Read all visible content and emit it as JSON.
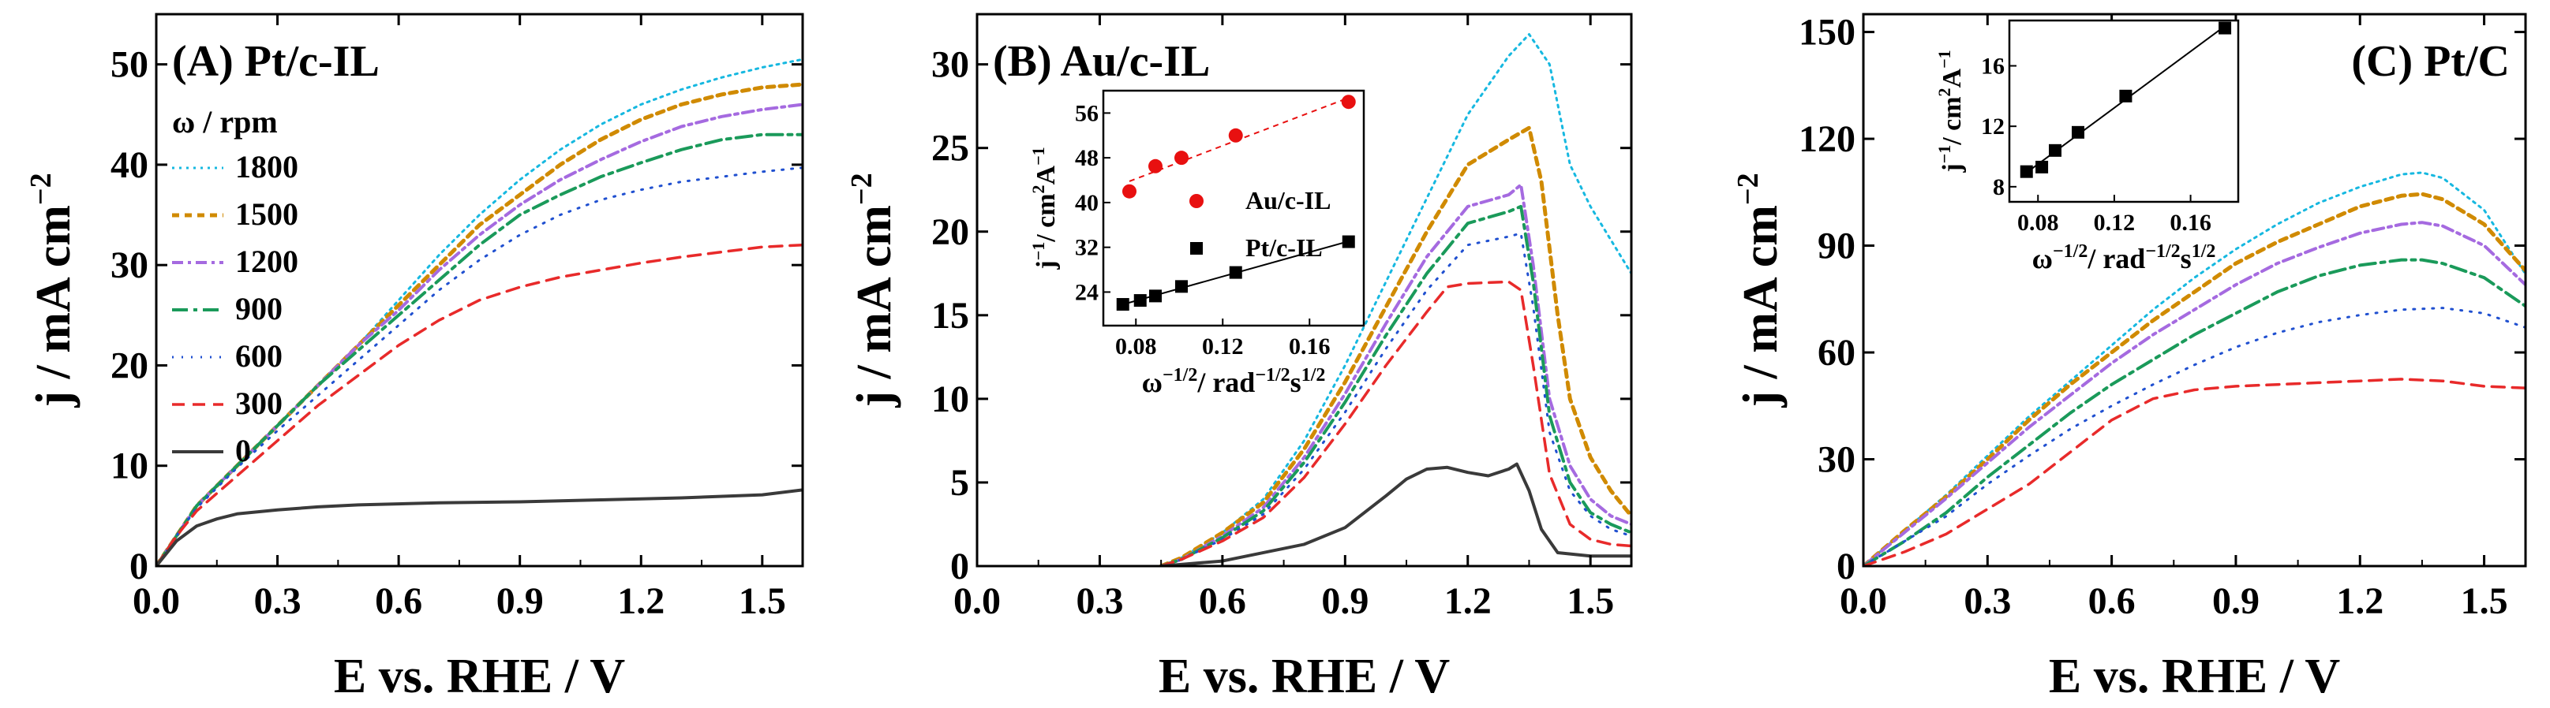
{
  "figure": {
    "x_axis_label": "E vs. RHE / V",
    "y_axis_label": "j / mA cm",
    "y_axis_label_exp": "−2",
    "inset_x_label_main": "ω",
    "inset_x_label_exp1": "−1/2",
    "inset_x_label_mid": "/ rad",
    "inset_x_label_exp2": "−1/2",
    "inset_x_label_s": "s",
    "inset_x_label_exp3": "1/2",
    "inset_y_label_main": "j",
    "inset_y_label_exp1": "−1",
    "inset_y_label_mid": "/ cm",
    "inset_y_label_exp2": "2",
    "inset_y_label_a": "A",
    "inset_y_label_exp3": "−1"
  },
  "colors": {
    "1800": "#16b8e0",
    "1500": "#d08a00",
    "1200": "#a56ae0",
    "900": "#1a9a5a",
    "600": "#2050d0",
    "300": "#e82a2a",
    "0": "#3a3a3a",
    "au_points": "#e81010",
    "pt_points": "#000000"
  },
  "chart_data": [
    {
      "id": "A",
      "type": "line",
      "title": "(A) Pt/c-IL",
      "xlabel": "E vs. RHE / V",
      "ylabel": "j / mA cm−2",
      "xlim": [
        0.0,
        1.6
      ],
      "ylim": [
        0,
        55
      ],
      "xticks": [
        "0.0",
        "0.3",
        "0.6",
        "0.9",
        "1.2",
        "1.5"
      ],
      "xtick_values": [
        0.0,
        0.3,
        0.6,
        0.9,
        1.2,
        1.5
      ],
      "yticks": [
        "0",
        "10",
        "20",
        "30",
        "40",
        "50"
      ],
      "ytick_values": [
        0,
        10,
        20,
        30,
        40,
        50
      ],
      "legend_title": "ω / rpm",
      "legend_position": "left",
      "series": [
        {
          "name": "1800",
          "x": [
            0,
            0.05,
            0.1,
            0.2,
            0.3,
            0.4,
            0.5,
            0.6,
            0.7,
            0.8,
            0.9,
            1.0,
            1.1,
            1.2,
            1.3,
            1.4,
            1.5,
            1.6
          ],
          "y": [
            0,
            3,
            6,
            10,
            14,
            18,
            22,
            26.5,
            31,
            35,
            38.5,
            41.5,
            44,
            46,
            47.5,
            48.7,
            49.7,
            50.5
          ]
        },
        {
          "name": "1500",
          "x": [
            0,
            0.05,
            0.1,
            0.2,
            0.3,
            0.4,
            0.5,
            0.6,
            0.7,
            0.8,
            0.9,
            1.0,
            1.1,
            1.2,
            1.3,
            1.4,
            1.5,
            1.6
          ],
          "y": [
            0,
            3,
            6,
            10,
            14,
            18,
            22,
            26,
            30,
            34,
            37,
            40,
            42.5,
            44.5,
            46,
            47,
            47.7,
            48
          ]
        },
        {
          "name": "1200",
          "x": [
            0,
            0.05,
            0.1,
            0.2,
            0.3,
            0.4,
            0.5,
            0.6,
            0.7,
            0.8,
            0.9,
            1.0,
            1.1,
            1.2,
            1.3,
            1.4,
            1.5,
            1.6
          ],
          "y": [
            0,
            3,
            6,
            10,
            14,
            18,
            22,
            25.5,
            29.5,
            33,
            36,
            38.5,
            40.5,
            42.3,
            43.8,
            44.8,
            45.5,
            46
          ]
        },
        {
          "name": "900",
          "x": [
            0,
            0.05,
            0.1,
            0.2,
            0.3,
            0.4,
            0.5,
            0.6,
            0.7,
            0.8,
            0.9,
            1.0,
            1.1,
            1.2,
            1.3,
            1.4,
            1.5,
            1.6
          ],
          "y": [
            0,
            3,
            6,
            10,
            14,
            18,
            21.5,
            25,
            28.5,
            32,
            35,
            37,
            38.8,
            40.2,
            41.5,
            42.5,
            43,
            43
          ]
        },
        {
          "name": "600",
          "x": [
            0,
            0.05,
            0.1,
            0.2,
            0.3,
            0.4,
            0.5,
            0.6,
            0.7,
            0.8,
            0.9,
            1.0,
            1.1,
            1.2,
            1.3,
            1.4,
            1.5,
            1.6
          ],
          "y": [
            0,
            3,
            5.8,
            9.8,
            13.5,
            17,
            20.5,
            24,
            27.5,
            30.5,
            33,
            35,
            36.5,
            37.5,
            38.3,
            38.8,
            39.3,
            39.7
          ]
        },
        {
          "name": "300",
          "x": [
            0,
            0.05,
            0.1,
            0.2,
            0.3,
            0.4,
            0.5,
            0.6,
            0.7,
            0.8,
            0.9,
            1.0,
            1.1,
            1.2,
            1.3,
            1.4,
            1.5,
            1.6
          ],
          "y": [
            0,
            3,
            5.5,
            9,
            12.5,
            16,
            19,
            22,
            24.5,
            26.5,
            27.8,
            28.8,
            29.5,
            30.2,
            30.8,
            31.3,
            31.8,
            32
          ]
        },
        {
          "name": "0",
          "x": [
            0,
            0.05,
            0.1,
            0.15,
            0.2,
            0.3,
            0.4,
            0.5,
            0.7,
            0.9,
            1.1,
            1.3,
            1.5,
            1.6
          ],
          "y": [
            0,
            2.5,
            4,
            4.7,
            5.2,
            5.6,
            5.9,
            6.1,
            6.3,
            6.4,
            6.6,
            6.8,
            7.1,
            7.6
          ]
        }
      ]
    },
    {
      "id": "B",
      "type": "line",
      "title": "(B) Au/c-IL",
      "xlabel": "E vs. RHE / V",
      "ylabel": "j / mA cm−2",
      "xlim": [
        0.0,
        1.6
      ],
      "ylim": [
        0,
        33
      ],
      "xticks": [
        "0.0",
        "0.3",
        "0.6",
        "0.9",
        "1.2",
        "1.5"
      ],
      "xtick_values": [
        0.0,
        0.3,
        0.6,
        0.9,
        1.2,
        1.5
      ],
      "yticks": [
        "0",
        "5",
        "10",
        "15",
        "20",
        "25",
        "30"
      ],
      "ytick_values": [
        0,
        5,
        10,
        15,
        20,
        25,
        30
      ],
      "series": [
        {
          "name": "1800",
          "x": [
            0.45,
            0.5,
            0.6,
            0.7,
            0.8,
            0.9,
            1.0,
            1.1,
            1.2,
            1.3,
            1.35,
            1.4,
            1.45,
            1.5,
            1.55,
            1.6
          ],
          "y": [
            0,
            0.5,
            2,
            4,
            7.5,
            12,
            17,
            22,
            27,
            30.5,
            31.8,
            30,
            24,
            21.5,
            19.5,
            17.5
          ]
        },
        {
          "name": "1500",
          "x": [
            0.45,
            0.5,
            0.6,
            0.7,
            0.8,
            0.9,
            1.0,
            1.1,
            1.2,
            1.3,
            1.35,
            1.38,
            1.42,
            1.45,
            1.5,
            1.55,
            1.6
          ],
          "y": [
            0,
            0.5,
            2,
            3.8,
            7,
            11,
            15.5,
            20,
            24,
            25.5,
            26.2,
            23,
            15,
            10,
            6.5,
            4.5,
            3
          ]
        },
        {
          "name": "1200",
          "x": [
            0.45,
            0.5,
            0.6,
            0.7,
            0.8,
            0.9,
            1.0,
            1.1,
            1.2,
            1.3,
            1.33,
            1.36,
            1.4,
            1.45,
            1.5,
            1.55,
            1.6
          ],
          "y": [
            0,
            0.4,
            1.8,
            3.5,
            6.5,
            10.3,
            14.5,
            18.5,
            21.5,
            22.2,
            22.8,
            18,
            10,
            6,
            4,
            3,
            2.5
          ]
        },
        {
          "name": "900",
          "x": [
            0.45,
            0.5,
            0.6,
            0.7,
            0.8,
            0.9,
            1.0,
            1.1,
            1.2,
            1.3,
            1.33,
            1.36,
            1.4,
            1.45,
            1.5,
            1.55,
            1.6
          ],
          "y": [
            0,
            0.4,
            1.7,
            3.3,
            6.2,
            9.8,
            13.8,
            17.5,
            20.5,
            21.2,
            21.5,
            17,
            9,
            5,
            3.2,
            2.5,
            2
          ]
        },
        {
          "name": "600",
          "x": [
            0.45,
            0.5,
            0.6,
            0.7,
            0.8,
            0.9,
            1.0,
            1.1,
            1.2,
            1.3,
            1.33,
            1.36,
            1.4,
            1.45,
            1.5,
            1.55,
            1.6
          ],
          "y": [
            0,
            0.4,
            1.6,
            3.1,
            5.8,
            9.2,
            13,
            16.5,
            19.2,
            19.7,
            19.9,
            15.5,
            8,
            4.5,
            3,
            2.2,
            1.8
          ]
        },
        {
          "name": "300",
          "x": [
            0.45,
            0.5,
            0.6,
            0.7,
            0.8,
            0.9,
            1.0,
            1.1,
            1.15,
            1.2,
            1.3,
            1.33,
            1.36,
            1.4,
            1.45,
            1.5,
            1.55,
            1.6
          ],
          "y": [
            0,
            0.4,
            1.5,
            2.9,
            5.3,
            8.5,
            12,
            15.2,
            16.7,
            16.9,
            17,
            16.5,
            12,
            5.5,
            2.5,
            1.6,
            1.3,
            1.2
          ]
        },
        {
          "name": "0",
          "x": [
            0.45,
            0.6,
            0.8,
            0.9,
            1.0,
            1.05,
            1.1,
            1.15,
            1.2,
            1.25,
            1.3,
            1.32,
            1.35,
            1.38,
            1.42,
            1.5,
            1.6
          ],
          "y": [
            0,
            0.3,
            1.3,
            2.3,
            4.2,
            5.2,
            5.8,
            5.9,
            5.6,
            5.4,
            5.8,
            6.1,
            4.5,
            2.2,
            0.8,
            0.6,
            0.6
          ]
        }
      ],
      "inset": {
        "type": "scatter",
        "xlim": [
          0.065,
          0.185
        ],
        "ylim": [
          18,
          60
        ],
        "xticks": [
          "0.08",
          "0.12",
          "0.16"
        ],
        "xtick_values": [
          0.08,
          0.12,
          0.16
        ],
        "yticks": [
          "24",
          "32",
          "40",
          "48",
          "56"
        ],
        "ytick_values": [
          24,
          32,
          40,
          48,
          56
        ],
        "legend_position": "right",
        "series": [
          {
            "name": "Au/c-IL",
            "color_key": "au_points",
            "marker": "circle",
            "fit": "dashed",
            "x": [
              0.077,
              0.089,
              0.101,
              0.126,
              0.178
            ],
            "y": [
              42,
              46.5,
              48,
              52,
              58
            ]
          },
          {
            "name": "Pt/c-IL",
            "color_key": "pt_points",
            "marker": "square",
            "fit": "solid",
            "x": [
              0.074,
              0.082,
              0.089,
              0.101,
              0.126,
              0.178
            ],
            "y": [
              21.8,
              22.5,
              23.3,
              25.0,
              27.5,
              33.0
            ]
          }
        ]
      }
    },
    {
      "id": "C",
      "type": "line",
      "title": "(C) Pt/C",
      "xlabel": "E vs. RHE / V",
      "ylabel": "j / mA cm−2",
      "xlim": [
        0.0,
        1.6
      ],
      "ylim": [
        0,
        155
      ],
      "xticks": [
        "0.0",
        "0.3",
        "0.6",
        "0.9",
        "1.2",
        "1.5"
      ],
      "xtick_values": [
        0.0,
        0.3,
        0.6,
        0.9,
        1.2,
        1.5
      ],
      "yticks": [
        "0",
        "30",
        "60",
        "90",
        "120",
        "150"
      ],
      "ytick_values": [
        0,
        30,
        60,
        90,
        120,
        150
      ],
      "series": [
        {
          "name": "1800",
          "x": [
            0,
            0.1,
            0.2,
            0.3,
            0.4,
            0.5,
            0.6,
            0.7,
            0.8,
            0.9,
            1.0,
            1.1,
            1.2,
            1.3,
            1.35,
            1.4,
            1.5,
            1.6
          ],
          "y": [
            0,
            10,
            20,
            31,
            42,
            52,
            62,
            72,
            81,
            89,
            96,
            102,
            106.5,
            110,
            110.5,
            109,
            100,
            82
          ]
        },
        {
          "name": "1500",
          "x": [
            0,
            0.1,
            0.2,
            0.3,
            0.4,
            0.5,
            0.6,
            0.7,
            0.8,
            0.9,
            1.0,
            1.1,
            1.2,
            1.3,
            1.35,
            1.4,
            1.5,
            1.6
          ],
          "y": [
            0,
            10,
            19.5,
            30,
            41,
            51,
            60,
            69,
            77,
            85,
            91,
            96,
            101,
            104,
            104.5,
            103,
            96,
            83
          ]
        },
        {
          "name": "1200",
          "x": [
            0,
            0.1,
            0.2,
            0.3,
            0.4,
            0.5,
            0.6,
            0.7,
            0.8,
            0.9,
            1.0,
            1.1,
            1.2,
            1.3,
            1.35,
            1.4,
            1.5,
            1.6
          ],
          "y": [
            0,
            9.5,
            19,
            29,
            39,
            48,
            57,
            65,
            72,
            79,
            85,
            89.5,
            93.5,
            96,
            96.5,
            95.5,
            90,
            79
          ]
        },
        {
          "name": "900",
          "x": [
            0,
            0.1,
            0.2,
            0.3,
            0.4,
            0.5,
            0.6,
            0.7,
            0.8,
            0.9,
            1.0,
            1.1,
            1.2,
            1.3,
            1.35,
            1.4,
            1.5,
            1.6
          ],
          "y": [
            0,
            7,
            15,
            25,
            34,
            43,
            51,
            58,
            65,
            71,
            77,
            81.5,
            84.5,
            86,
            86,
            85,
            81,
            73
          ]
        },
        {
          "name": "600",
          "x": [
            0,
            0.1,
            0.2,
            0.3,
            0.4,
            0.5,
            0.6,
            0.7,
            0.8,
            0.9,
            1.0,
            1.1,
            1.2,
            1.3,
            1.4,
            1.5,
            1.6
          ],
          "y": [
            0,
            7,
            14,
            23,
            31,
            38.5,
            45,
            51,
            56.5,
            61.5,
            65.5,
            68.5,
            70.5,
            72,
            72.5,
            71,
            67
          ]
        },
        {
          "name": "300",
          "x": [
            0,
            0.1,
            0.2,
            0.3,
            0.4,
            0.5,
            0.6,
            0.7,
            0.8,
            0.9,
            1.0,
            1.1,
            1.2,
            1.3,
            1.4,
            1.5,
            1.6
          ],
          "y": [
            0,
            4,
            9,
            16,
            23,
            32,
            41,
            47,
            49.5,
            50.5,
            51,
            51.5,
            52,
            52.5,
            52,
            50.5,
            50
          ]
        }
      ],
      "inset": {
        "type": "scatter",
        "xlim": [
          0.065,
          0.185
        ],
        "ylim": [
          7,
          19
        ],
        "xticks": [
          "0.08",
          "0.12",
          "0.16"
        ],
        "xtick_values": [
          0.08,
          0.12,
          0.16
        ],
        "yticks": [
          "8",
          "12",
          "16"
        ],
        "ytick_values": [
          8,
          12,
          16
        ],
        "series": [
          {
            "name": "Pt/C",
            "color_key": "pt_points",
            "marker": "square",
            "fit": "solid",
            "x": [
              0.074,
              0.082,
              0.089,
              0.101,
              0.126,
              0.178
            ],
            "y": [
              9.0,
              9.3,
              10.4,
              11.6,
              14.0,
              18.5
            ]
          }
        ]
      }
    }
  ]
}
